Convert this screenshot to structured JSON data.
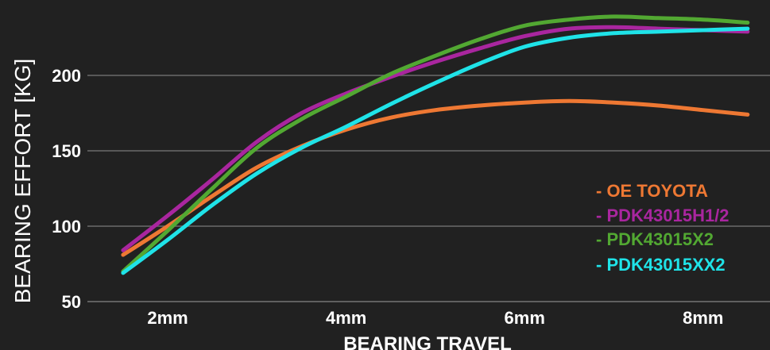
{
  "chart_data": {
    "type": "line",
    "title": "",
    "xlabel": "BEARING TRAVEL",
    "ylabel": "BEARING EFFORT [KG]",
    "x": [
      1.5,
      2,
      2.5,
      3,
      3.5,
      4,
      4.5,
      5,
      5.5,
      6,
      6.5,
      7,
      7.5,
      8,
      8.5
    ],
    "x_ticks": [
      {
        "value": 2,
        "label": "2mm"
      },
      {
        "value": 4,
        "label": "4mm"
      },
      {
        "value": 6,
        "label": "6mm"
      },
      {
        "value": 8,
        "label": "8mm"
      }
    ],
    "y_ticks": [
      {
        "value": 50,
        "label": "50"
      },
      {
        "value": 100,
        "label": "100"
      },
      {
        "value": 150,
        "label": "150"
      },
      {
        "value": 200,
        "label": "200"
      }
    ],
    "xlim": [
      1.1,
      8.75
    ],
    "ylim": [
      50,
      240
    ],
    "grid": true,
    "legend_position": "right",
    "series": [
      {
        "name": "OE TOYOTA",
        "color": "#ee7833",
        "values": [
          81,
          100,
          120,
          139,
          153,
          164,
          172,
          177,
          180,
          182,
          183,
          182,
          180,
          177,
          174
        ]
      },
      {
        "name": "PDK43015H1/2",
        "color": "#a9269f",
        "values": [
          84,
          107,
          131,
          156,
          175,
          188,
          199,
          209,
          218,
          226,
          231,
          232,
          231,
          230,
          229
        ]
      },
      {
        "name": "PDK43015X2",
        "color": "#52a832",
        "values": [
          70,
          97,
          125,
          152,
          171,
          186,
          201,
          213,
          224,
          233,
          237,
          239,
          238,
          237,
          235
        ]
      },
      {
        "name": "PDK43015XX2",
        "color": "#1fe3e8",
        "values": [
          69,
          91,
          114,
          135,
          152,
          166,
          181,
          195,
          208,
          219,
          225,
          228,
          229,
          230,
          231
        ]
      }
    ]
  }
}
